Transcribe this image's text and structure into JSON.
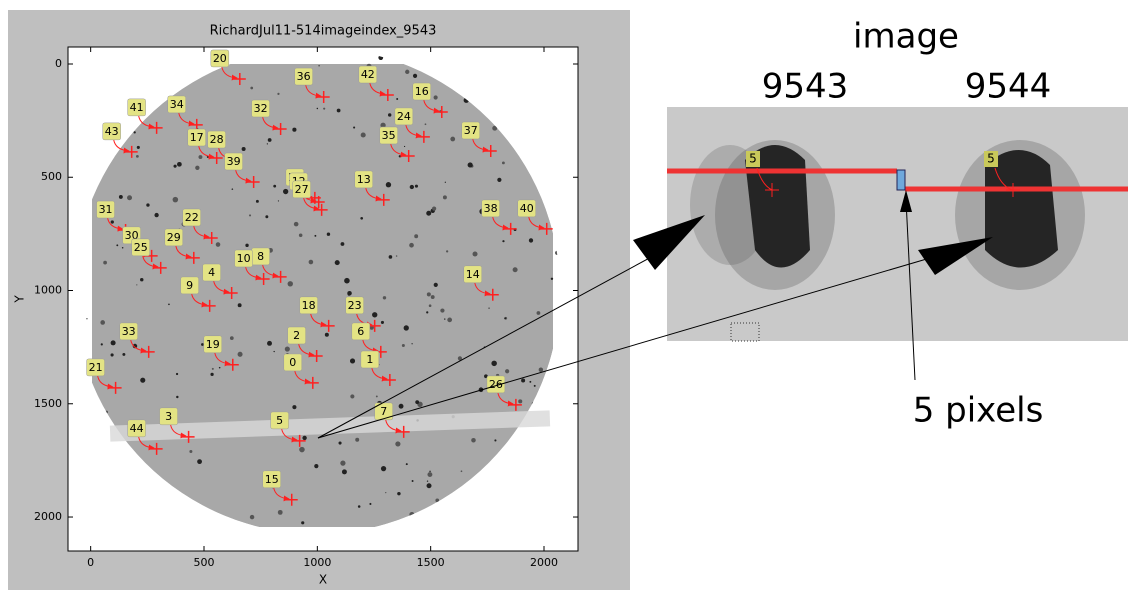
{
  "chart_data": {
    "type": "scatter",
    "title": "RichardJul11-514imageindex_9543",
    "xlabel": "X",
    "ylabel": "Y",
    "xlim": [
      -100,
      2150
    ],
    "ylim": [
      2150,
      -75
    ],
    "xticks": [
      0,
      500,
      1000,
      1500,
      2000
    ],
    "yticks": [
      0,
      500,
      1000,
      1500,
      2000
    ],
    "color": "#ff2020",
    "label_color": "#e3e384",
    "labels": [
      "20",
      "36",
      "42",
      "16",
      "34",
      "32",
      "41",
      "24",
      "35",
      "37",
      "43",
      "17",
      "28",
      "39",
      "11",
      "12",
      "27",
      "13",
      "31",
      "30",
      "38",
      "40",
      "22",
      "25",
      "29",
      "8",
      "10",
      "4",
      "9",
      "14",
      "18",
      "23",
      "33",
      "2",
      "6",
      "19",
      "0",
      "1",
      "21",
      "26",
      "5",
      "7",
      "3",
      "44",
      "15"
    ],
    "x": [
      658,
      1028,
      1311,
      1549,
      468,
      838,
      291,
      1470,
      1403,
      1765,
      181,
      556,
      644,
      719,
      989,
      1006,
      1019,
      1293,
      154,
      269,
      1853,
      2012,
      534,
      309,
      455,
      838,
      763,
      622,
      525,
      1774,
      1050,
      1253,
      256,
      997,
      1280,
      627,
      980,
      1320,
      110,
      1876,
      922,
      1381,
      432,
      291,
      887
    ],
    "values": [
      66,
      146,
      137,
      212,
      269,
      287,
      282,
      322,
      406,
      384,
      388,
      415,
      424,
      521,
      591,
      609,
      644,
      600,
      733,
      847,
      728,
      728,
      768,
      900,
      856,
      940,
      949,
      1011,
      1068,
      1019,
      1156,
      1156,
      1271,
      1289,
      1271,
      1328,
      1408,
      1395,
      1430,
      1505,
      1664,
      1624,
      1646,
      1699,
      1924
    ]
  },
  "zoom": {
    "title": "image",
    "frames": [
      "9543",
      "9544"
    ],
    "spot_labels": [
      "5",
      "5"
    ],
    "annotation": "5 pixels"
  }
}
